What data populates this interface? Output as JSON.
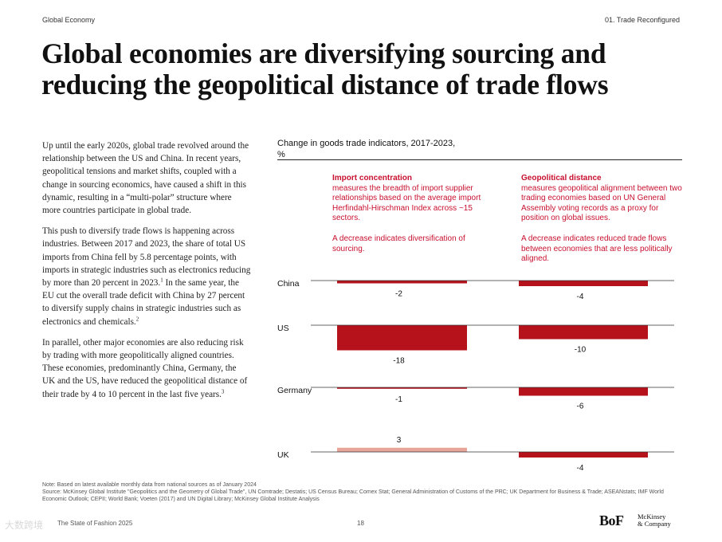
{
  "header": {
    "left": "Global Economy",
    "right": "01. Trade Reconfigured"
  },
  "title": {
    "line1": "Global economies are diversifying sourcing and",
    "line2": "reducing the geopolitical distance of trade flows"
  },
  "body": {
    "p1": "Up until the early 2020s, global trade revolved around the relationship between the US and China. In recent years, geopolitical tensions and market shifts, coupled with a change in sourcing economics, have caused a shift in this dynamic, resulting in a “multi-polar” structure where more countries participate in global trade.",
    "p2": "This push to diversify trade flows is happening across industries. Between 2017 and 2023, the share of total US imports from China fell by 5.8 percentage points, with imports in strategic industries such as electronics reducing by more than 20 percent in 2023.",
    "p2_sup": "1",
    "p2b": " In the same year, the EU cut the overall trade deficit with China by 27 percent to diversify supply chains in strategic industries such as electronics and chemicals.",
    "p2b_sup": "2",
    "p3": "In parallel, other major economies are also reducing risk by trading with more geopolitically aligned countries. These economies, predominantly China, Germany, the UK and the US, have reduced the geopolitical distance of their trade by 4 to 10 percent in the last five years.",
    "p3_sup": "3"
  },
  "chart_data": {
    "type": "bar",
    "title": "Change in goods trade indicators, 2017-2023,",
    "unit": "%",
    "categories": [
      "China",
      "US",
      "Germany",
      "UK"
    ],
    "series": [
      {
        "name": "Import concentration",
        "description": "measures the breadth of import supplier relationships based on the average import Herfindahl-Hirschman Index across ~15 sectors.",
        "note": "A decrease indicates diversification of sourcing.",
        "values": [
          -2,
          -18,
          -1,
          3
        ],
        "labels": [
          "-2",
          "-18",
          "-1",
          "3"
        ]
      },
      {
        "name": "Geopolitical distance",
        "description": "measures geopolitical alignment between two trading economies based on UN General Assembly voting records as a proxy for position on global issues.",
        "note": "A decrease indicates reduced trade flows between economies that are less politically aligned.",
        "values": [
          -4,
          -10,
          -6,
          -4
        ],
        "labels": [
          "-4",
          "-10",
          "-6",
          "-4"
        ]
      }
    ],
    "colors": {
      "negative": "#b5121b",
      "positive": "#e8a69a",
      "accent_text": "#c8102e"
    }
  },
  "footnotes": {
    "note": "Note: Based on latest available monthly data from national sources as of January 2024",
    "source": "Source: McKinsey Global Institute \"Geopolitics and the Geometry of Global Trade\", UN Comtrade; Destatis; US Census Bureau; Comex Stat; General Administration of Customs of the PRC; UK Department for Business & Trade; ASEANstats; IMF World Economic Outlook; CEPII; World Bank; Voeten (2017) and UN Digital Library; McKinsey Global Institute Analysis"
  },
  "footer": {
    "publication": "The State of Fashion 2025",
    "page": "18",
    "logo_bof": "BoF",
    "logo_mck_line1": "McKinsey",
    "logo_mck_line2": "& Company"
  },
  "watermark": "大数跨境"
}
